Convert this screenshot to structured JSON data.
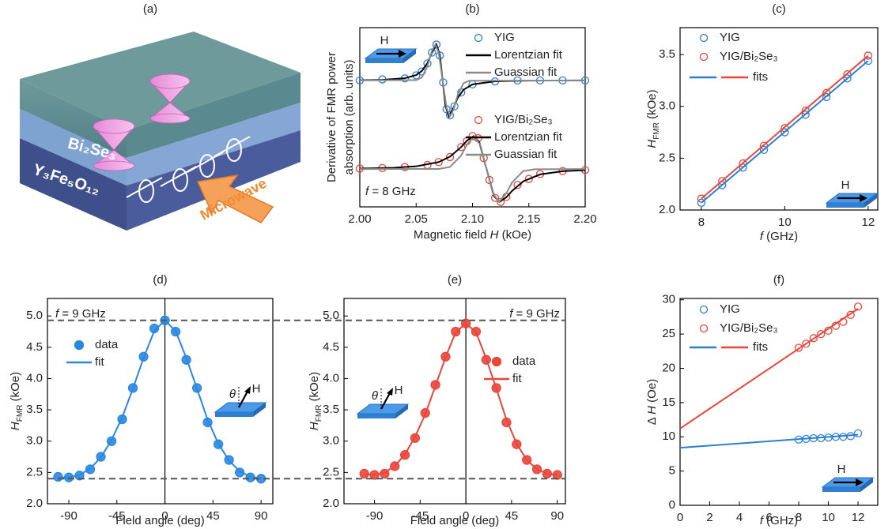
{
  "illustration": {
    "label": "(a)",
    "layer_top": "Bi₂Se₃",
    "layer_bottom": "Y₃Fe₅O₁₂",
    "arrow_label": "Microwave"
  },
  "chart_data": [
    {
      "type": "line",
      "panel_label": "(b)",
      "xlim": [
        2.0,
        2.2
      ],
      "ylim": [
        -1.02,
        0.78
      ],
      "xticks": [
        {
          "value": 2,
          "label": "2.00"
        },
        2.05,
        {
          "value": 2.1,
          "label": "2.10"
        },
        2.15,
        {
          "value": 2.2,
          "label": "2.20"
        }
      ],
      "xlabel": [
        [
          {
            "text": "Magnetic field "
          },
          {
            "text": "H",
            "italic": true
          },
          {
            "text": " (kOe)"
          }
        ]
      ],
      "ylabel": [
        [
          {
            "text": "Derivative of FMR power"
          }
        ],
        [
          {
            "text": "absorption (arb. units)"
          }
        ]
      ],
      "annotation": [
        {
          "text": "f",
          "italic": true
        },
        {
          "text": " = 8 GHz"
        }
      ],
      "inset_labels": [
        "H"
      ],
      "series": [
        {
          "name": "YIG",
          "color": "#2a7fd4",
          "marker": "open",
          "x": [
            2.0,
            2.02,
            2.04,
            2.05,
            2.055,
            2.06,
            2.064,
            2.068,
            2.071,
            2.074,
            2.077,
            2.08,
            2.084,
            2.09,
            2.1,
            2.12,
            2.14,
            2.16,
            2.18,
            2.2
          ],
          "values": [
            0.25,
            0.26,
            0.27,
            0.3,
            0.34,
            0.42,
            0.53,
            0.61,
            0.5,
            0.23,
            -0.04,
            -0.1,
            -0.01,
            0.13,
            0.21,
            0.24,
            0.25,
            0.25,
            0.25,
            0.25
          ]
        },
        {
          "name": "Lorentzian fit",
          "color": "#000000",
          "x": [
            2.0,
            2.02,
            2.04,
            2.05,
            2.055,
            2.06,
            2.064,
            2.068,
            2.071,
            2.0735,
            2.076,
            2.079,
            2.083,
            2.087,
            2.092,
            2.1,
            2.12,
            2.15,
            2.2
          ],
          "values": [
            0.252,
            0.256,
            0.272,
            0.304,
            0.344,
            0.423,
            0.528,
            0.611,
            0.505,
            0.25,
            -0.005,
            -0.111,
            -0.028,
            0.077,
            0.156,
            0.21,
            0.241,
            0.248,
            0.25
          ]
        },
        {
          "name": "Guassian fit",
          "color": "#8a8a8a",
          "x": [
            2.0,
            2.05,
            2.055,
            2.06,
            2.064,
            2.067,
            2.07,
            2.0735,
            2.077,
            2.08,
            2.083,
            2.087,
            2.092,
            2.097,
            2.2
          ],
          "values": [
            0.25,
            0.253,
            0.279,
            0.392,
            0.547,
            0.61,
            0.527,
            0.25,
            -0.027,
            -0.11,
            -0.047,
            0.108,
            0.221,
            0.247,
            0.25
          ]
        },
        {
          "name": "YIG/Bi₂Se₃",
          "color": "#e8463a",
          "marker": "open",
          "x": [
            2.0,
            2.02,
            2.04,
            2.06,
            2.07,
            2.08,
            2.09,
            2.095,
            2.1,
            2.105,
            2.11,
            2.115,
            2.12,
            2.125,
            2.13,
            2.14,
            2.15,
            2.16,
            2.18,
            2.2
          ],
          "values": [
            -0.635,
            -0.63,
            -0.62,
            -0.6,
            -0.57,
            -0.52,
            -0.42,
            -0.36,
            -0.31,
            -0.33,
            -0.53,
            -0.75,
            -0.93,
            -0.97,
            -0.92,
            -0.8,
            -0.74,
            -0.69,
            -0.66,
            -0.65
          ]
        },
        {
          "name": "Lorentzian fit",
          "color": "#000000",
          "x": [
            2.0,
            2.03,
            2.05,
            2.07,
            2.08,
            2.09,
            2.095,
            2.101,
            2.106,
            2.1125,
            2.119,
            2.124,
            2.13,
            2.135,
            2.145,
            2.16,
            2.18,
            2.2
          ],
          "values": [
            -0.635,
            -0.627,
            -0.613,
            -0.57,
            -0.516,
            -0.419,
            -0.356,
            -0.31,
            -0.369,
            -0.64,
            -0.911,
            -0.97,
            -0.924,
            -0.861,
            -0.764,
            -0.694,
            -0.662,
            -0.651
          ]
        },
        {
          "name": "Guassian fit",
          "color": "#8a8a8a",
          "x": [
            2.0,
            2.07,
            2.08,
            2.09,
            2.095,
            2.1015,
            2.107,
            2.1125,
            2.118,
            2.1235,
            2.13,
            2.135,
            2.145,
            2.155,
            2.2
          ],
          "values": [
            -0.64,
            -0.639,
            -0.619,
            -0.504,
            -0.395,
            -0.31,
            -0.4,
            -0.64,
            -0.88,
            -0.97,
            -0.885,
            -0.776,
            -0.661,
            -0.642,
            -0.64
          ]
        }
      ]
    },
    {
      "type": "line",
      "panel_label": "(c)",
      "xlim": [
        7.49,
        12.23
      ],
      "ylim": [
        2.0,
        3.76
      ],
      "xticks": [
        8,
        10,
        12
      ],
      "yticks": [
        {
          "value": 2,
          "label": "2.0"
        },
        2.5,
        {
          "value": 3,
          "label": "3.0"
        },
        3.5
      ],
      "xlabel": [
        [
          {
            "text": "f",
            "italic": true
          },
          {
            "text": " (GHz)"
          }
        ]
      ],
      "ylabel": [
        [
          {
            "text": "H",
            "italic": true
          },
          {
            "text": "FMR",
            "sub": true
          },
          {
            "text": " (kOe)"
          }
        ]
      ],
      "inset_labels": [
        "H"
      ],
      "fits_label": "fits",
      "series": [
        {
          "name": "YIG",
          "color": "#2a7fd4",
          "marker": "open",
          "x": [
            8,
            8.5,
            9,
            9.5,
            10,
            10.5,
            11,
            11.5,
            12
          ],
          "values": [
            2.07,
            2.24,
            2.41,
            2.58,
            2.75,
            2.92,
            3.09,
            3.27,
            3.44
          ]
        },
        {
          "name": "YIG/Bi₂Se₃",
          "color": "#e8463a",
          "marker": "open",
          "x": [
            8,
            8.5,
            9,
            9.5,
            10,
            10.5,
            11,
            11.5,
            12
          ],
          "values": [
            2.11,
            2.28,
            2.45,
            2.62,
            2.79,
            2.96,
            3.13,
            3.31,
            3.49
          ]
        },
        {
          "color": "#2a7fd4",
          "x": [
            8,
            12
          ],
          "values": [
            2.07,
            3.44
          ]
        },
        {
          "color": "#e8463a",
          "x": [
            8,
            12
          ],
          "values": [
            2.11,
            3.49
          ]
        }
      ]
    },
    {
      "type": "line",
      "panel_label": "(d)",
      "xlim": [
        -110,
        101
      ],
      "ylim": [
        2.0,
        5.28
      ],
      "xticks": [
        -90,
        -45,
        0,
        45,
        90
      ],
      "yticks": [
        {
          "value": 2,
          "label": "2.0"
        },
        2.5,
        {
          "value": 3,
          "label": "3.0"
        },
        3.5,
        {
          "value": 4,
          "label": "4.0"
        },
        4.5,
        {
          "value": 5,
          "label": "5.0"
        }
      ],
      "xlabel": [
        [
          {
            "text": "Field angle (deg)"
          }
        ]
      ],
      "ylabel": [
        [
          {
            "text": "H",
            "italic": true
          },
          {
            "text": "FMR",
            "sub": true
          },
          {
            "text": " (kOe)"
          }
        ]
      ],
      "annotation": [
        {
          "text": "f",
          "italic": true
        },
        {
          "text": " = 9 GHz"
        }
      ],
      "inset_labels": [
        "θ",
        "H"
      ],
      "vline": 0,
      "ref_lines": [
        4.93,
        2.4
      ],
      "series": [
        {
          "name": "data",
          "color": "#2a87e0",
          "marker": "filled",
          "x": [
            -100,
            -90,
            -80,
            -70,
            -60,
            -50,
            -40,
            -30,
            -20,
            -10,
            0,
            10,
            20,
            30,
            40,
            50,
            60,
            70,
            80,
            90
          ],
          "values": [
            2.43,
            2.42,
            2.45,
            2.55,
            2.75,
            3.0,
            3.35,
            3.85,
            4.35,
            4.8,
            4.93,
            4.75,
            4.3,
            3.85,
            3.3,
            2.95,
            2.7,
            2.5,
            2.42,
            2.4
          ]
        },
        {
          "name": "fit",
          "color": "#2a87e0",
          "x": [
            -100,
            -90,
            -80,
            -70,
            -60,
            -50,
            -40,
            -30,
            -20,
            -10,
            0,
            10,
            20,
            30,
            40,
            50,
            60,
            70,
            80,
            90
          ],
          "values": [
            2.42,
            2.42,
            2.46,
            2.56,
            2.74,
            3.02,
            3.38,
            3.84,
            4.33,
            4.76,
            4.93,
            4.76,
            4.33,
            3.84,
            3.34,
            2.96,
            2.69,
            2.52,
            2.43,
            2.4
          ]
        }
      ]
    },
    {
      "type": "line",
      "panel_label": "(e)",
      "xlim": [
        -120,
        98
      ],
      "ylim": [
        2.0,
        5.28
      ],
      "xticks": [
        -90,
        -45,
        0,
        45,
        90
      ],
      "yticks": [
        {
          "value": 2,
          "label": "2.0"
        },
        2.5,
        {
          "value": 3,
          "label": "3.0"
        },
        3.5,
        {
          "value": 4,
          "label": "4.0"
        },
        4.5,
        {
          "value": 5,
          "label": "5.0"
        }
      ],
      "xlabel": [
        [
          {
            "text": "Field angle (deg)"
          }
        ]
      ],
      "ylabel": [
        [
          {
            "text": "H",
            "italic": true
          },
          {
            "text": "FMR",
            "sub": true
          },
          {
            "text": " (kOe)"
          }
        ]
      ],
      "annotation": [
        {
          "text": "f",
          "italic": true
        },
        {
          "text": " = 9 GHz"
        }
      ],
      "inset_labels": [
        "θ",
        "H"
      ],
      "vline": 0,
      "series": [
        {
          "name": "data",
          "color": "#e8463a",
          "marker": "filled",
          "x": [
            -100,
            -90,
            -80,
            -70,
            -60,
            -50,
            -40,
            -30,
            -20,
            -10,
            0,
            10,
            20,
            30,
            40,
            50,
            60,
            70,
            80,
            90
          ],
          "values": [
            2.48,
            2.46,
            2.48,
            2.6,
            2.78,
            3.05,
            3.45,
            3.9,
            4.35,
            4.75,
            4.88,
            4.75,
            4.3,
            3.85,
            3.3,
            2.95,
            2.7,
            2.55,
            2.48,
            2.46
          ]
        },
        {
          "name": "fit",
          "color": "#e8463a",
          "x": [
            -100,
            -90,
            -80,
            -70,
            -60,
            -50,
            -40,
            -30,
            -20,
            -10,
            0,
            10,
            20,
            30,
            40,
            50,
            60,
            70,
            80,
            90
          ],
          "values": [
            2.47,
            2.46,
            2.5,
            2.6,
            2.79,
            3.07,
            3.43,
            3.88,
            4.34,
            4.74,
            4.88,
            4.74,
            4.32,
            3.84,
            3.34,
            2.96,
            2.7,
            2.55,
            2.48,
            2.46
          ]
        }
      ]
    },
    {
      "type": "line",
      "panel_label": "(f)",
      "xlim": [
        0,
        13.33
      ],
      "ylim": [
        0,
        30.2
      ],
      "xticks": [
        0,
        2,
        4,
        6,
        8,
        10,
        12
      ],
      "yticks": [
        0,
        5,
        10,
        15,
        20,
        25,
        30
      ],
      "xlabel": [
        [
          {
            "text": "f",
            "italic": true
          },
          {
            "text": " (GHz)"
          }
        ]
      ],
      "ylabel": [
        [
          {
            "text": "Δ "
          },
          {
            "text": "H",
            "italic": true
          },
          {
            "text": " (Oe)"
          }
        ]
      ],
      "inset_labels": [
        "H"
      ],
      "fits_label": "fits",
      "series": [
        {
          "name": "YIG",
          "color": "#2a7fd4",
          "marker": "open",
          "x": [
            8,
            8.5,
            9,
            9.5,
            10,
            10.5,
            11,
            11.5,
            12
          ],
          "values": [
            9.6,
            9.7,
            9.8,
            9.8,
            9.9,
            10,
            10,
            10.1,
            10.5
          ]
        },
        {
          "name": "YIG/Bi₂Se₃",
          "color": "#e8463a",
          "marker": "open",
          "x": [
            8,
            8.5,
            9,
            9.5,
            10,
            10.5,
            11,
            11.5,
            12
          ],
          "values": [
            23,
            23.6,
            24.4,
            25,
            25.5,
            26.2,
            26.8,
            27.8,
            29
          ]
        },
        {
          "color": "#2a7fd4",
          "x": [
            0,
            12
          ],
          "values": [
            8.4,
            10.3
          ]
        },
        {
          "color": "#e8463a",
          "x": [
            0,
            12
          ],
          "values": [
            11.2,
            28.7
          ]
        }
      ]
    }
  ]
}
